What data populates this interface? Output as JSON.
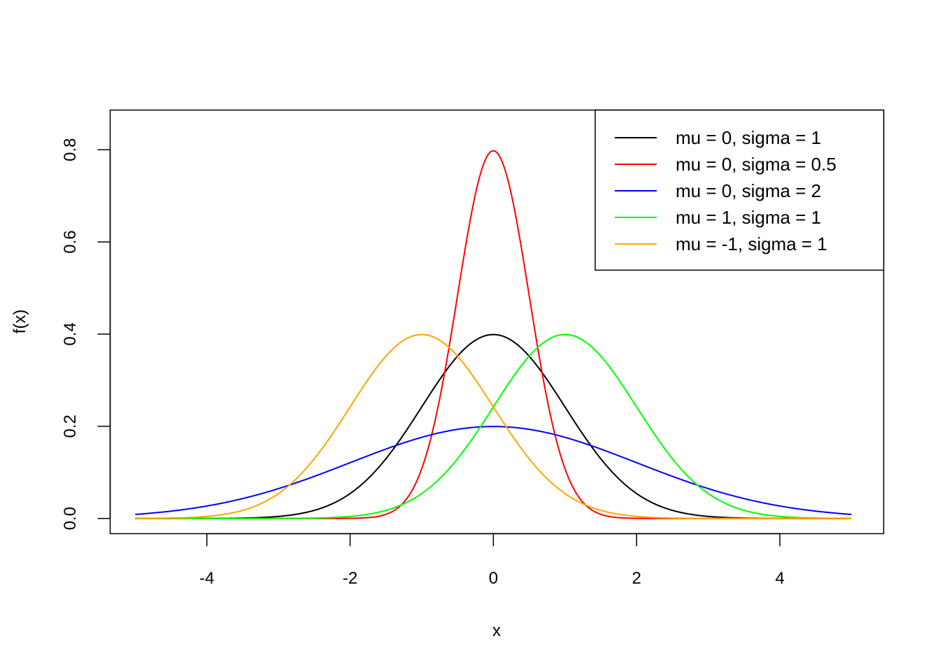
{
  "chart_data": {
    "type": "line",
    "title": "",
    "xlabel": "x",
    "ylabel": "f(x)",
    "xlim": [
      -5.35,
      5.45
    ],
    "ylim": [
      -0.033,
      0.886
    ],
    "x_range": [
      -5,
      5
    ],
    "xticks": [
      -4,
      -2,
      0,
      2,
      4
    ],
    "xtick_labels": [
      "-4",
      "-2",
      "0",
      "2",
      "4"
    ],
    "yticks": [
      0.0,
      0.2,
      0.4,
      0.6,
      0.8
    ],
    "ytick_labels": [
      "0.0",
      "0.2",
      "0.4",
      "0.6",
      "0.8"
    ],
    "grid": false,
    "legend_position": "top-right",
    "series": [
      {
        "name": "mu = 0, sigma = 1",
        "mu": 0,
        "sigma": 1,
        "color": "#000000"
      },
      {
        "name": "mu = 0, sigma = 0.5",
        "mu": 0,
        "sigma": 0.5,
        "color": "#FF0000"
      },
      {
        "name": "mu = 0, sigma = 2",
        "mu": 0,
        "sigma": 2,
        "color": "#0000FF"
      },
      {
        "name": "mu = 1, sigma = 1",
        "mu": 1,
        "sigma": 1,
        "color": "#00FF00"
      },
      {
        "name": "mu = -1, sigma = 1",
        "mu": -1,
        "sigma": 1,
        "color": "#FFA500"
      }
    ]
  }
}
